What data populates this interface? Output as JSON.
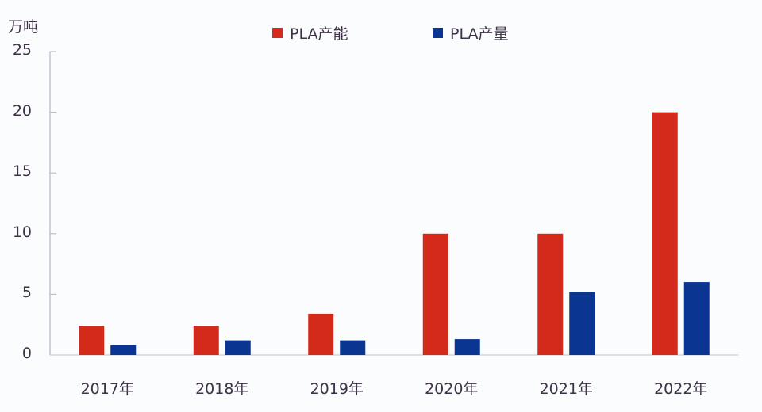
{
  "chart_data": {
    "type": "bar",
    "title": "",
    "xlabel": "",
    "ylabel": "万吨",
    "ylim": [
      0,
      25
    ],
    "yticks": [
      0,
      5,
      10,
      15,
      20,
      25
    ],
    "grid": false,
    "legend_position": "top",
    "categories": [
      "2017年",
      "2018年",
      "2019年",
      "2020年",
      "2021年",
      "2022年"
    ],
    "series": [
      {
        "name": "PLA产能",
        "color": "#d42a1c",
        "values": [
          2.4,
          2.4,
          3.4,
          10,
          10,
          20
        ]
      },
      {
        "name": "PLA产量",
        "color": "#0a3590",
        "values": [
          0.8,
          1.2,
          1.2,
          1.3,
          5.2,
          6
        ]
      }
    ]
  },
  "unit_label": "万吨",
  "legend": [
    {
      "label": "PLA产能",
      "color": "#d42a1c"
    },
    {
      "label": "PLA产量",
      "color": "#0a3590"
    }
  ],
  "yaxis": {
    "ticks": [
      "0",
      "5",
      "10",
      "15",
      "20",
      "25"
    ]
  },
  "xaxis": {
    "ticks": [
      "2017年",
      "2018年",
      "2019年",
      "2020年",
      "2021年",
      "2022年"
    ]
  }
}
